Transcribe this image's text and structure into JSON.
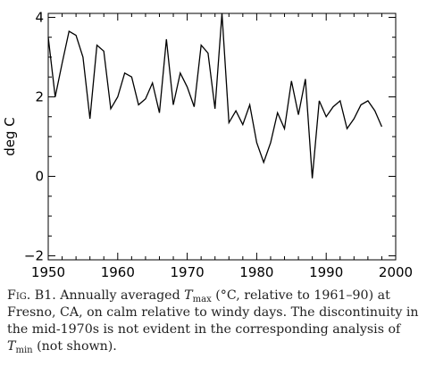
{
  "chart_data": {
    "type": "line",
    "title": "",
    "xlabel": "",
    "ylabel": "deg C",
    "xlim": [
      1950,
      2000
    ],
    "ylim": [
      -2.1,
      4.1
    ],
    "xticks": [
      1950,
      1960,
      1970,
      1980,
      1990,
      2000
    ],
    "yticks": [
      -2,
      0,
      2,
      4
    ],
    "x_minor_step": 2,
    "y_minor_step": 0.5,
    "grid": false,
    "legend": "none",
    "line_color": "#000000",
    "x": [
      1950,
      1951,
      1952,
      1953,
      1954,
      1955,
      1956,
      1957,
      1958,
      1959,
      1960,
      1961,
      1962,
      1963,
      1964,
      1965,
      1966,
      1967,
      1968,
      1969,
      1970,
      1971,
      1972,
      1973,
      1974,
      1975,
      1976,
      1977,
      1978,
      1979,
      1980,
      1981,
      1982,
      1983,
      1984,
      1985,
      1986,
      1987,
      1988,
      1989,
      1990,
      1991,
      1992,
      1993,
      1994,
      1995,
      1996,
      1997,
      1998
    ],
    "values": [
      3.5,
      2.0,
      2.85,
      3.65,
      3.55,
      3.0,
      1.45,
      3.3,
      3.15,
      1.7,
      2.0,
      2.6,
      2.5,
      1.8,
      1.95,
      2.35,
      1.6,
      3.45,
      1.8,
      2.6,
      2.25,
      1.75,
      3.3,
      3.1,
      1.7,
      4.1,
      1.35,
      1.65,
      1.3,
      1.8,
      0.85,
      0.35,
      0.85,
      1.6,
      1.2,
      2.4,
      1.55,
      2.45,
      -0.05,
      1.9,
      1.5,
      1.75,
      1.9,
      1.2,
      1.45,
      1.8,
      1.9,
      1.65,
      1.25
    ]
  },
  "caption": {
    "fig_label": "Fig. B1.",
    "text_1": " Annually averaged ",
    "sym_1": "T",
    "sub_1": "max",
    "text_2": " (°C, relative to 1961–90) at Fresno, CA, on calm relative to windy days. The discontinuity in the mid-1970s is not evident in the corresponding analysis of ",
    "sym_2": "T",
    "sub_2": "min",
    "text_3": " (not shown)."
  }
}
